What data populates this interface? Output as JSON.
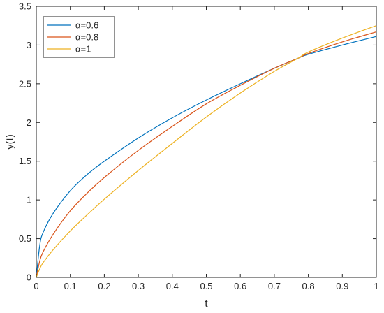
{
  "chart_data": {
    "type": "line",
    "title": "",
    "xlabel": "t",
    "ylabel": "y(t)",
    "xlim": [
      0,
      1
    ],
    "ylim": [
      0,
      3.5
    ],
    "xticks": [
      "0",
      "0.1",
      "0.2",
      "0.3",
      "0.4",
      "0.5",
      "0.6",
      "0.7",
      "0.8",
      "0.9",
      "1"
    ],
    "yticks": [
      "0",
      "0.5",
      "1",
      "1.5",
      "2",
      "2.5",
      "3",
      "3.5"
    ],
    "grid": false,
    "legend_position": "top-left",
    "x": [
      0,
      0.01,
      0.02,
      0.05,
      0.1,
      0.15,
      0.2,
      0.3,
      0.4,
      0.5,
      0.6,
      0.7,
      0.77,
      0.8,
      0.9,
      1.0
    ],
    "series": [
      {
        "name": "α=0.6",
        "color": "#0072BD",
        "values": [
          0,
          0.41,
          0.58,
          0.83,
          1.12,
          1.33,
          1.5,
          1.8,
          2.06,
          2.29,
          2.5,
          2.7,
          2.83,
          2.88,
          3.0,
          3.11
        ]
      },
      {
        "name": "α=0.8",
        "color": "#D95319",
        "values": [
          0,
          0.21,
          0.33,
          0.56,
          0.86,
          1.09,
          1.29,
          1.64,
          1.95,
          2.24,
          2.48,
          2.7,
          2.83,
          2.89,
          3.04,
          3.17
        ]
      },
      {
        "name": "α=1",
        "color": "#EDB120",
        "values": [
          0,
          0.11,
          0.19,
          0.36,
          0.6,
          0.81,
          1.01,
          1.38,
          1.73,
          2.07,
          2.38,
          2.66,
          2.83,
          2.91,
          3.09,
          3.25
        ]
      }
    ]
  }
}
